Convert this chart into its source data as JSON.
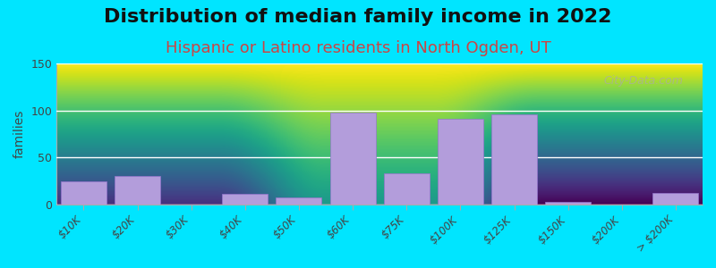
{
  "title": "Distribution of median family income in 2022",
  "subtitle": "Hispanic or Latino residents in North Ogden, UT",
  "xlabel": "",
  "ylabel": "families",
  "categories": [
    "$10K",
    "$20K",
    "$30K",
    "$40K",
    "$50K",
    "$60K",
    "$75K",
    "$100K",
    "$125K",
    "$150K",
    "$200K",
    "> $200K"
  ],
  "values": [
    25,
    30,
    0,
    11,
    8,
    98,
    33,
    91,
    96,
    3,
    0,
    12
  ],
  "bar_color": "#b39ddb",
  "bar_edge_color": "#9575cd",
  "background_color": "#00e5ff",
  "plot_bg_top": "#ffffff",
  "plot_bg_bottom": "#d4edda",
  "ylim": [
    0,
    150
  ],
  "yticks": [
    0,
    50,
    100,
    150
  ],
  "title_fontsize": 16,
  "subtitle_fontsize": 13,
  "ylabel_fontsize": 10,
  "watermark": "City-Data.com"
}
